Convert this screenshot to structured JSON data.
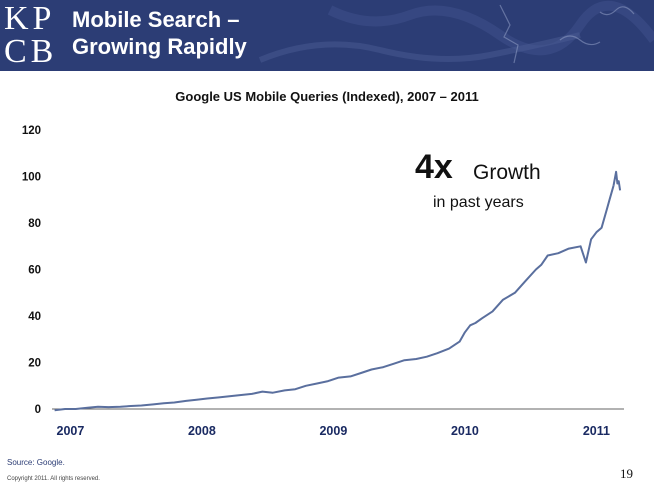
{
  "header": {
    "logo_line1": "KP",
    "logo_line2": "CB",
    "title_line1": "Mobile Search –",
    "title_line2": "Growing Rapidly",
    "background": "#2c3d75"
  },
  "annotation": {
    "big": "4x",
    "mid": "Growth",
    "small": "in past years"
  },
  "footer": {
    "source": "Source: Google.",
    "copyright": "Copyright 2011. All rights reserved.",
    "page_number": "19"
  },
  "chart_data": {
    "type": "line",
    "title": "Google US Mobile Queries (Indexed), 2007 – 2011",
    "xlabel": "",
    "ylabel": "",
    "x_tick_labels": [
      "2007",
      "2008",
      "2009",
      "2010",
      "2011"
    ],
    "y_ticks": [
      0,
      20,
      40,
      60,
      80,
      100,
      120
    ],
    "ylim": [
      0,
      120
    ],
    "xlim": [
      2006.9,
      2011.25
    ],
    "grid": false,
    "line_color": "#5a6f9e",
    "series": [
      {
        "x": [
          2006.92,
          2007.0,
          2007.08,
          2007.17,
          2007.25,
          2007.33,
          2007.42,
          2007.5,
          2007.58,
          2007.67,
          2007.75,
          2007.83,
          2007.92,
          2008.0,
          2008.08,
          2008.17,
          2008.25,
          2008.33,
          2008.42,
          2008.5,
          2008.58,
          2008.67,
          2008.75,
          2008.83,
          2008.92,
          2009.0,
          2009.08,
          2009.17,
          2009.25,
          2009.33,
          2009.42,
          2009.5,
          2009.58,
          2009.67,
          2009.75,
          2009.83,
          2009.92,
          2010.0,
          2010.04,
          2010.08,
          2010.12,
          2010.17,
          2010.25,
          2010.33,
          2010.42,
          2010.5,
          2010.58,
          2010.62,
          2010.67,
          2010.75,
          2010.83,
          2010.92,
          2010.96,
          2011.0,
          2011.04,
          2011.08,
          2011.12,
          2011.14,
          2011.17
        ],
        "values": [
          -0.5,
          0,
          0,
          0.5,
          1,
          0.8,
          1,
          1.3,
          1.5,
          2,
          2.5,
          2.8,
          3.5,
          4,
          4.5,
          5,
          5.5,
          6,
          6.5,
          7.5,
          7,
          8,
          8.5,
          10,
          11,
          12,
          13.5,
          14,
          15.5,
          17,
          18,
          19.5,
          21,
          21.5,
          22.5,
          24,
          26,
          29,
          33,
          36,
          37,
          39,
          42,
          47,
          50,
          55,
          60,
          62,
          66,
          67,
          69,
          70,
          63,
          73,
          76,
          78,
          86,
          90,
          96
        ]
      },
      {
        "x": [
          2011.17,
          2011.19,
          2011.2,
          2011.21,
          2011.22
        ],
        "values": [
          96,
          102,
          97,
          98,
          94
        ]
      }
    ]
  }
}
